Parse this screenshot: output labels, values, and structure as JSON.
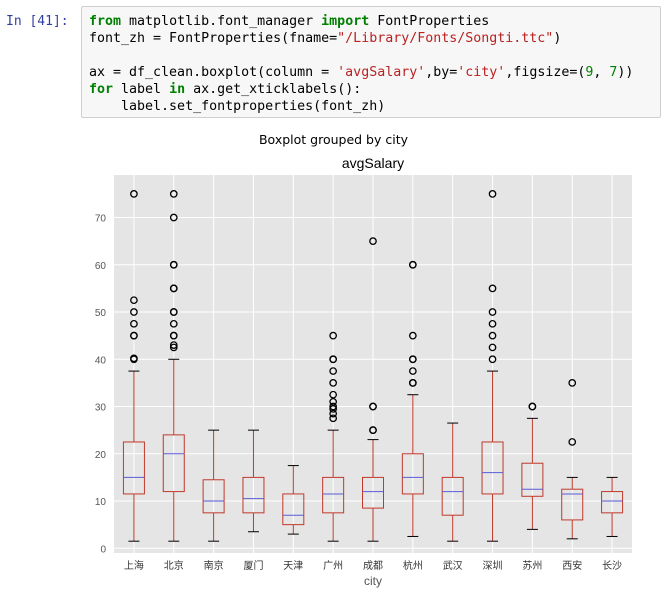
{
  "prompt": "In [41]:",
  "code_lines": [
    [
      {
        "t": "from",
        "c": "kw"
      },
      {
        "t": " matplotlib.font_manager "
      },
      {
        "t": "import",
        "c": "kw"
      },
      {
        "t": " FontProperties"
      }
    ],
    [
      {
        "t": "font_zh = FontProperties(fname="
      },
      {
        "t": "\"/Library/Fonts/Songti.ttc\"",
        "c": "str"
      },
      {
        "t": ")"
      }
    ],
    [],
    [
      {
        "t": "ax = df_clean.boxplot(column = "
      },
      {
        "t": "'avgSalary'",
        "c": "str"
      },
      {
        "t": ",by="
      },
      {
        "t": "'city'",
        "c": "str"
      },
      {
        "t": ",figsize=("
      },
      {
        "t": "9",
        "c": "num"
      },
      {
        "t": ", "
      },
      {
        "t": "7",
        "c": "num"
      },
      {
        "t": "))"
      }
    ],
    [
      {
        "t": "for",
        "c": "kw"
      },
      {
        "t": " label "
      },
      {
        "t": "in",
        "c": "kw"
      },
      {
        "t": " ax.get_xticklabels():"
      }
    ],
    [
      {
        "t": "    label.set_fontproperties(font_zh)"
      }
    ]
  ],
  "suptitle": "Boxplot grouped by city",
  "chart_data": {
    "type": "boxplot",
    "title": "avgSalary",
    "xlabel": "city",
    "ylabel": "",
    "ylim": [
      -1,
      79
    ],
    "yticks": [
      0,
      10,
      20,
      30,
      40,
      50,
      60,
      70
    ],
    "grid": true,
    "colors": {
      "box": "#c0392b",
      "median": "#5b5bd6",
      "background": "#e5e5e5",
      "grid": "#ffffff",
      "flier": "#000000"
    },
    "categories": [
      "上海",
      "北京",
      "南京",
      "厦门",
      "天津",
      "广州",
      "成都",
      "杭州",
      "武汉",
      "深圳",
      "苏州",
      "西安",
      "长沙"
    ],
    "boxes": [
      {
        "whislo": 1.5,
        "q1": 11.5,
        "med": 15,
        "q3": 22.5,
        "whishi": 37.5,
        "fliers": [
          40,
          40.2,
          45,
          45,
          47.5,
          50,
          52.5,
          75
        ]
      },
      {
        "whislo": 1.5,
        "q1": 12,
        "med": 20,
        "q3": 24,
        "whishi": 40,
        "fliers": [
          42.5,
          43,
          45,
          45,
          47.5,
          50,
          50,
          55,
          55,
          60,
          60,
          70,
          75
        ]
      },
      {
        "whislo": 1.5,
        "q1": 7.5,
        "med": 10,
        "q3": 14.5,
        "whishi": 25,
        "fliers": []
      },
      {
        "whislo": 3.5,
        "q1": 7.5,
        "med": 10.5,
        "q3": 15,
        "whishi": 25,
        "fliers": []
      },
      {
        "whislo": 3,
        "q1": 5,
        "med": 7,
        "q3": 11.5,
        "whishi": 17.5,
        "fliers": []
      },
      {
        "whislo": 1.5,
        "q1": 7.5,
        "med": 11.5,
        "q3": 15,
        "whishi": 25,
        "fliers": [
          27.5,
          28.5,
          29.5,
          30,
          31,
          32.5,
          35,
          37.5,
          40,
          40,
          45
        ]
      },
      {
        "whislo": 1.5,
        "q1": 8.5,
        "med": 12,
        "q3": 15,
        "whishi": 23,
        "fliers": [
          25,
          25,
          30,
          30,
          65
        ]
      },
      {
        "whislo": 2.5,
        "q1": 11.5,
        "med": 15,
        "q3": 20,
        "whishi": 32.5,
        "fliers": [
          35,
          35,
          37.5,
          40,
          40,
          45,
          60,
          60
        ]
      },
      {
        "whislo": 1.5,
        "q1": 7,
        "med": 12,
        "q3": 15,
        "whishi": 26.5,
        "fliers": []
      },
      {
        "whislo": 1.5,
        "q1": 11.5,
        "med": 16,
        "q3": 22.5,
        "whishi": 37.5,
        "fliers": [
          40,
          42.5,
          45,
          47.5,
          50,
          55,
          75
        ]
      },
      {
        "whislo": 4,
        "q1": 11,
        "med": 12.5,
        "q3": 18,
        "whishi": 27.5,
        "fliers": [
          30,
          30
        ]
      },
      {
        "whislo": 2,
        "q1": 6,
        "med": 11.5,
        "q3": 12.5,
        "whishi": 15,
        "fliers": [
          22.5,
          35
        ]
      },
      {
        "whislo": 2.5,
        "q1": 7.5,
        "med": 10,
        "q3": 12,
        "whishi": 15,
        "fliers": []
      }
    ]
  }
}
